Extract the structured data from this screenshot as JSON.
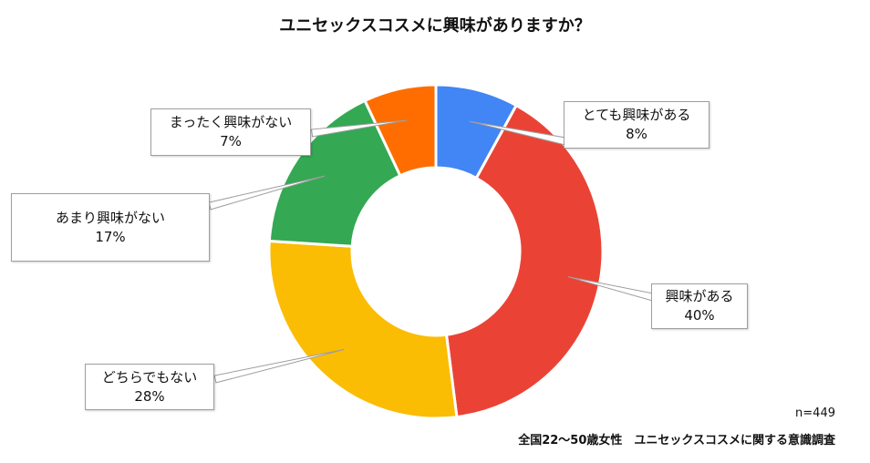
{
  "chart_data": {
    "type": "pie",
    "title": "ユニセックスコスメに興味がありますか？",
    "slices": [
      {
        "label": "とても興味がある",
        "value_label": "8%",
        "value": 8,
        "color": "#4285F4"
      },
      {
        "label": "興味がある",
        "value_label": "40%",
        "value": 40,
        "color": "#EA4335"
      },
      {
        "label": "どちらでもない",
        "value_label": "28%",
        "value": 28,
        "color": "#FBBC04"
      },
      {
        "label": "あまり興味がない",
        "value_label": "17%",
        "value": 17,
        "color": "#34A853"
      },
      {
        "label": "まったく興味がない",
        "value_label": "7%",
        "value": 7,
        "color": "#FF6D01"
      }
    ],
    "note_n": "n=449",
    "source": "全国22〜50歳女性　ユニセックスコスメに関する意識調査"
  }
}
